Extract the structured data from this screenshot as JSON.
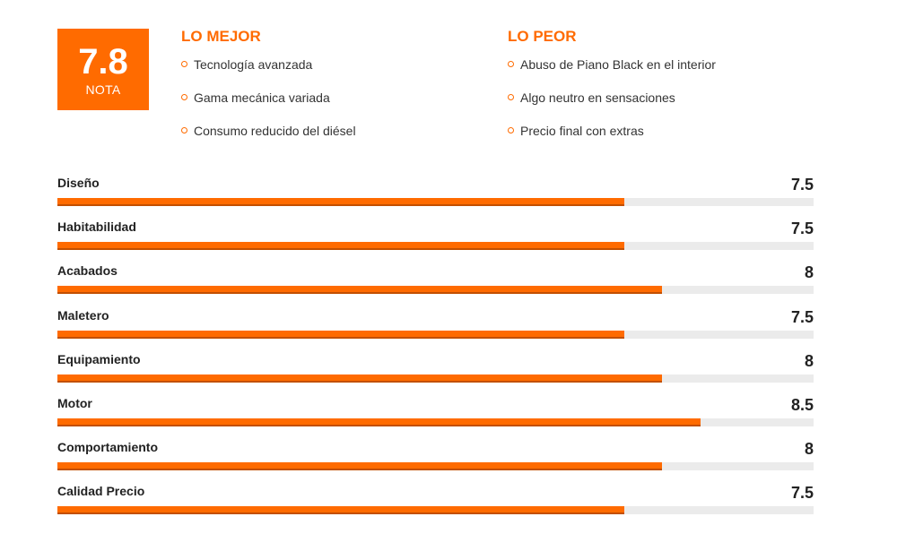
{
  "score": {
    "value": "7.8",
    "label": "NOTA"
  },
  "best": {
    "title": "LO MEJOR",
    "items": [
      "Tecnología avanzada",
      "Gama mecánica variada",
      "Consumo reducido del diésel"
    ]
  },
  "worst": {
    "title": "LO PEOR",
    "items": [
      "Abuso de Piano Black en el interior",
      "Algo neutro en sensaciones",
      "Precio final con extras"
    ]
  },
  "ratings": [
    {
      "name": "Diseño",
      "value": "7.5",
      "score": 7.5
    },
    {
      "name": "Habitabilidad",
      "value": "7.5",
      "score": 7.5
    },
    {
      "name": "Acabados",
      "value": "8",
      "score": 8
    },
    {
      "name": "Maletero",
      "value": "7.5",
      "score": 7.5
    },
    {
      "name": "Equipamiento",
      "value": "8",
      "score": 8
    },
    {
      "name": "Motor",
      "value": "8.5",
      "score": 8.5
    },
    {
      "name": "Comportamiento",
      "value": "8",
      "score": 8
    },
    {
      "name": "Calidad Precio",
      "value": "7.5",
      "score": 7.5
    }
  ],
  "scale_max": 10,
  "colors": {
    "accent": "#ff6b00",
    "track": "#ebebeb"
  }
}
